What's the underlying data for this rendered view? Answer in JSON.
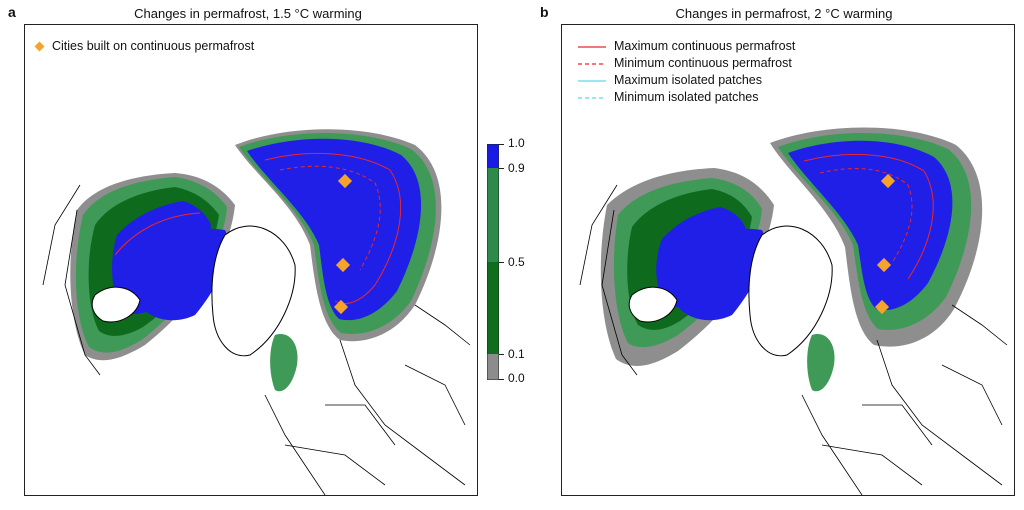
{
  "panels": [
    {
      "letter": "a",
      "title": "Changes in permafrost, 1.5 °C warming"
    },
    {
      "letter": "b",
      "title": "Changes in permafrost, 2 °C warming"
    }
  ],
  "legend_a": {
    "cities_label": "Cities built on continuous permafrost"
  },
  "legend_b": {
    "items": [
      {
        "label": "Maximum continuous permafrost",
        "color": "#e8282e",
        "style": "solid"
      },
      {
        "label": "Minimum continuous permafrost",
        "color": "#e8282e",
        "style": "dashed"
      },
      {
        "label": "Maximum isolated patches",
        "color": "#5ed8ee",
        "style": "solid"
      },
      {
        "label": "Minimum isolated patches",
        "color": "#5ed8ee",
        "style": "dashed"
      }
    ]
  },
  "colorbar": {
    "ticks": [
      "1.0",
      "0.9",
      "0.5",
      "0.1",
      "0.0"
    ],
    "colors": {
      "high": "#1a1ae6",
      "mid_high": "#2e8a4a",
      "mid": "#0f6e1e",
      "low": "#2a8c3a",
      "zero": "#8c8c8c"
    }
  },
  "colors": {
    "continuous": "#1f1fe8",
    "discontinuous": "#0e6b1e",
    "sporadic": "#3f9a58",
    "lost": "#8e8e8e",
    "city": "#f5a32a",
    "coast": "#000000"
  }
}
